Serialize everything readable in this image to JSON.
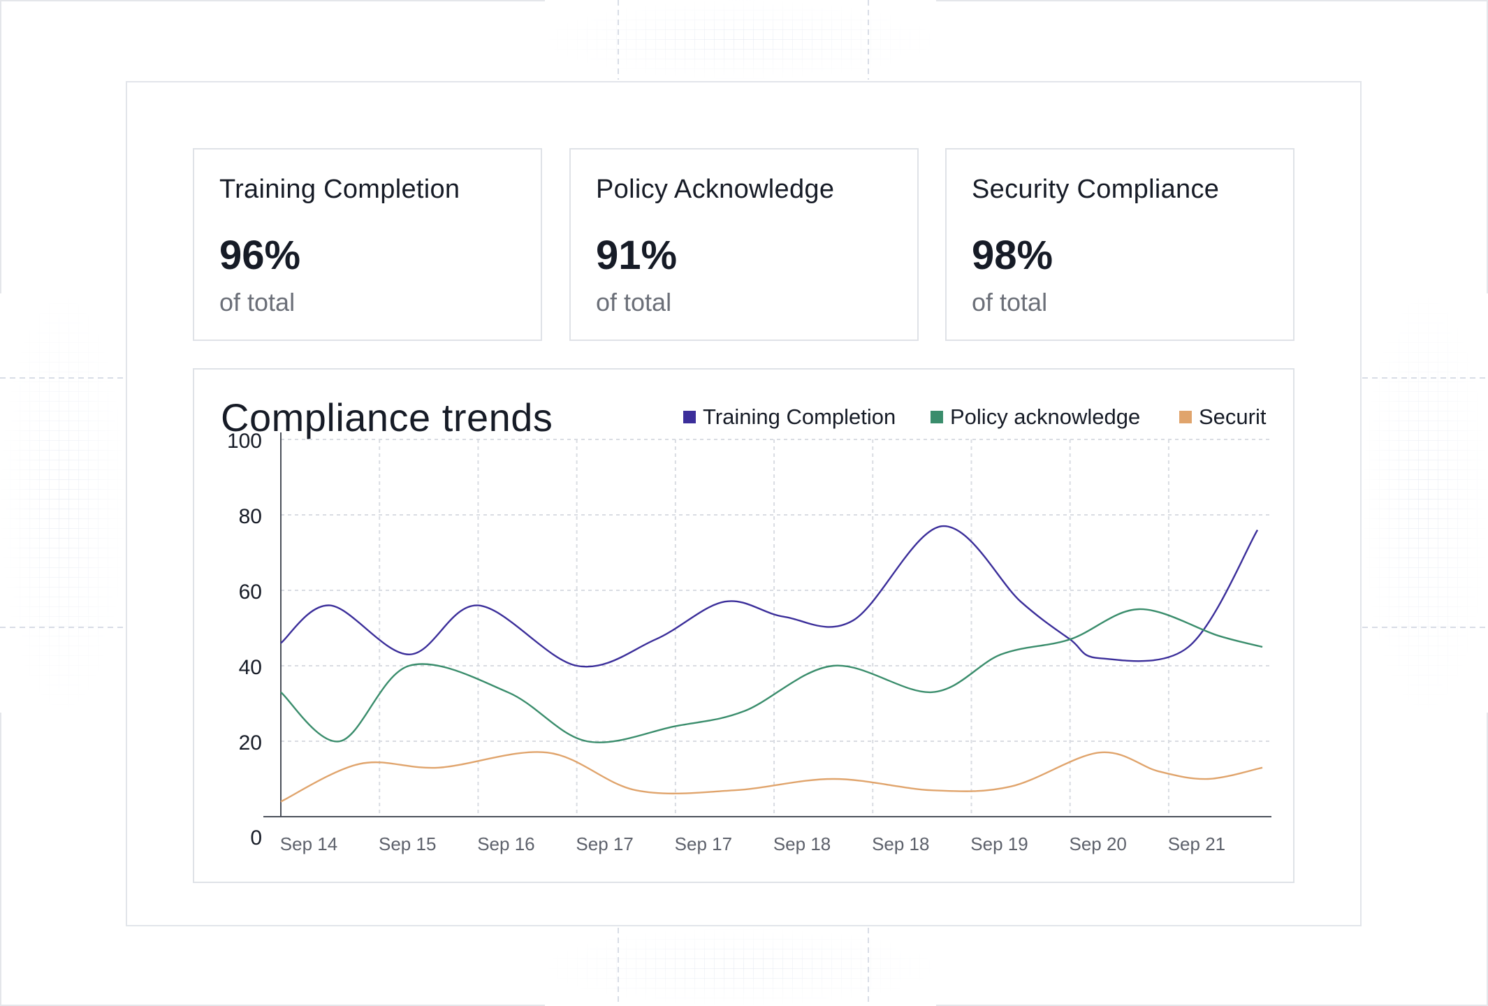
{
  "cards": [
    {
      "title": "Training Completion",
      "value": "96%",
      "sub": "of total"
    },
    {
      "title": "Policy Acknowledge",
      "value": "91%",
      "sub": "of total"
    },
    {
      "title": "Security Compliance",
      "value": "98%",
      "sub": "of total"
    }
  ],
  "colors": {
    "training": "#3b2e9a",
    "policy": "#3a8d6c",
    "security": "#e0a46c",
    "grid": "#d9dce2",
    "axis": "#4a4f59"
  },
  "chart_data": {
    "type": "line",
    "title": "Compliance trends",
    "xlabel": "",
    "ylabel": "",
    "ylim": [
      0,
      100
    ],
    "yticks": [
      0,
      20,
      40,
      60,
      80,
      100
    ],
    "grid": true,
    "legend_position": "top-right",
    "categories": [
      "Sep 14",
      "Sep 15",
      "Sep 16",
      "Sep 17",
      "Sep 17",
      "Sep 18",
      "Sep 18",
      "Sep 19",
      "Sep 20",
      "Sep 21"
    ],
    "series": [
      {
        "name": "Training Completion",
        "color": "#3b2e9a",
        "x": [
          0,
          0.5,
          1.3,
          2,
          3,
          3.8,
          4.5,
          5.1,
          5.8,
          6.7,
          7.5,
          8.0,
          8.3,
          9.2,
          9.9
        ],
        "values": [
          46,
          56,
          43,
          56,
          40,
          47,
          57,
          53,
          52,
          77,
          57,
          47,
          42,
          45,
          76
        ]
      },
      {
        "name": "Policy acknowledge",
        "color": "#3a8d6c",
        "x": [
          0,
          0.6,
          1.3,
          2.3,
          3.1,
          4.0,
          4.7,
          5.6,
          6.6,
          7.3,
          8.0,
          8.7,
          9.5,
          9.95
        ],
        "values": [
          33,
          20,
          40,
          33,
          20,
          24,
          28,
          40,
          33,
          43,
          47,
          55,
          48,
          45
        ]
      },
      {
        "name": "Securit",
        "color": "#e0a46c",
        "x": [
          0,
          0.8,
          1.6,
          2.7,
          3.6,
          4.6,
          5.6,
          6.6,
          7.4,
          8.3,
          8.9,
          9.4,
          9.95
        ],
        "values": [
          4,
          14,
          13,
          17,
          7,
          7,
          10,
          7,
          8,
          17,
          12,
          10,
          13
        ]
      }
    ]
  }
}
